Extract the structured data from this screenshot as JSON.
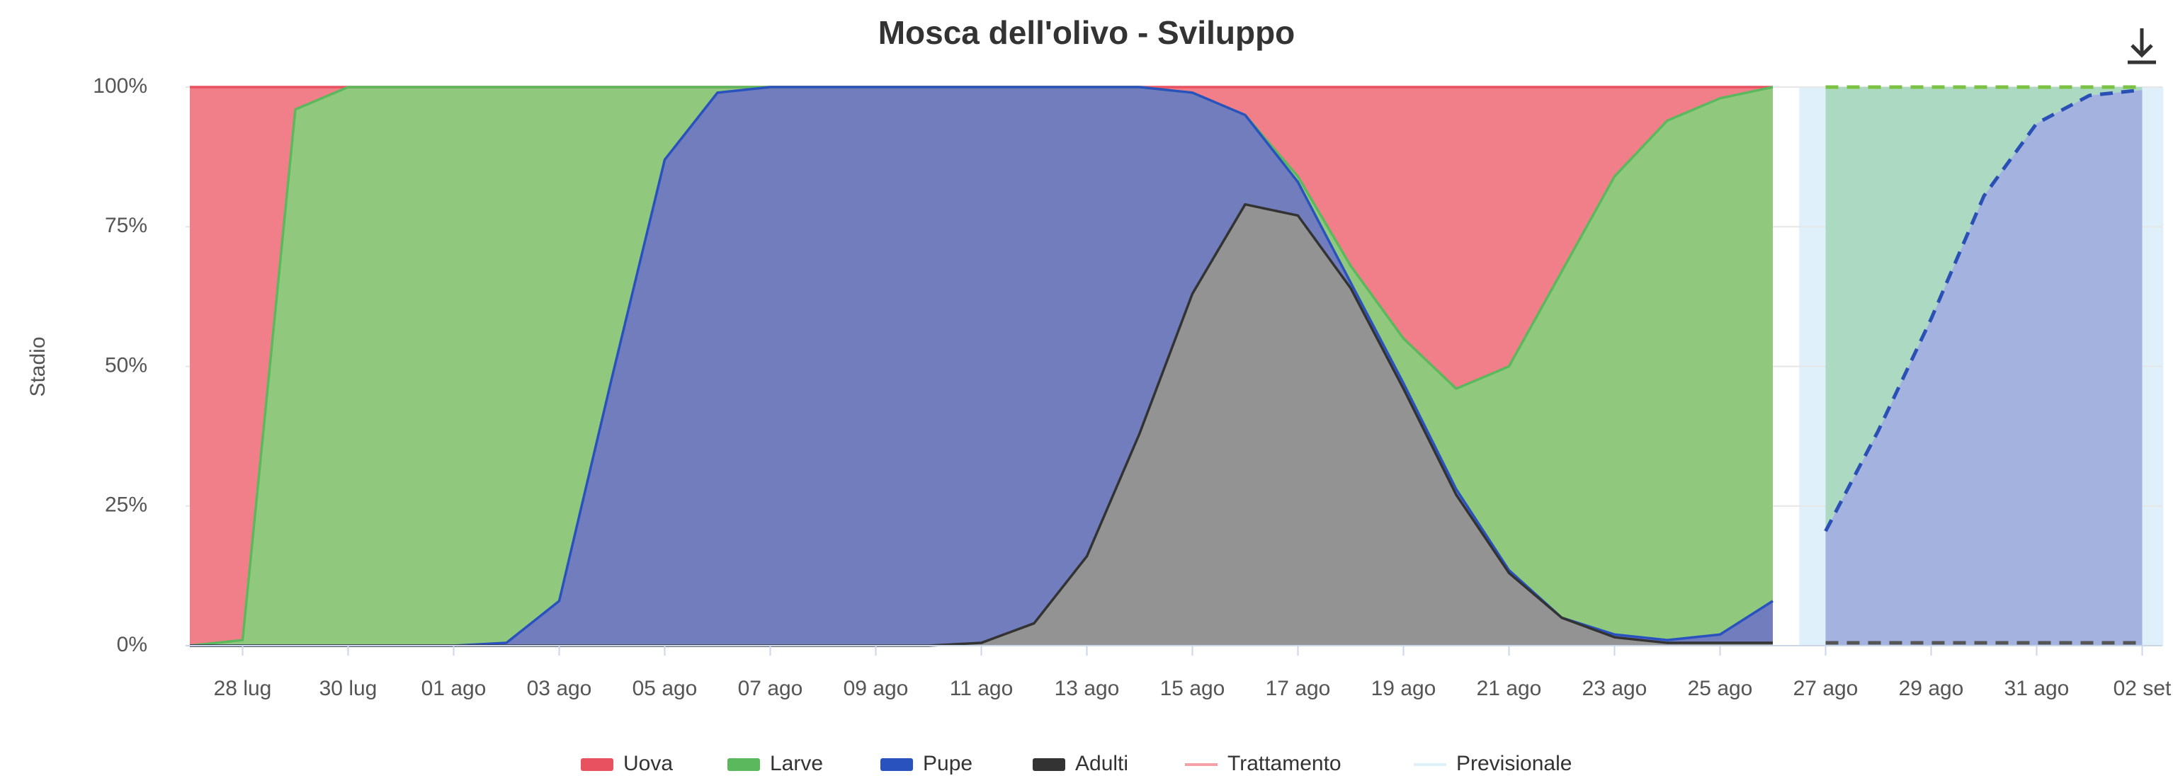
{
  "chart_data": {
    "type": "stacked_area",
    "title": "Mosca dell'olivo - Sviluppo",
    "y_label": "Stadio",
    "categories": [
      null,
      "28 lug",
      null,
      "30 lug",
      null,
      "01 ago",
      null,
      "03 ago",
      null,
      "05 ago",
      null,
      "07 ago",
      null,
      "09 ago",
      null,
      "11 ago",
      null,
      "13 ago",
      null,
      "15 ago",
      null,
      "17 ago",
      null,
      "19 ago",
      null,
      "21 ago",
      null,
      "23 ago",
      null,
      "25 ago",
      null,
      "27 ago",
      null,
      "29 ago",
      null,
      "31 ago",
      null,
      "02 set"
    ],
    "series": [
      {
        "name": "Uova",
        "color": "#f07f89",
        "line": "#e8515f",
        "values": [
          100,
          99,
          4,
          0,
          0,
          0,
          0,
          0,
          0,
          0,
          0,
          0,
          0,
          0,
          0,
          0,
          0,
          0,
          0,
          1,
          5,
          16,
          32,
          45,
          54,
          50,
          33,
          16,
          6,
          2,
          0,
          null,
          null,
          null,
          null,
          null,
          null,
          null
        ]
      },
      {
        "name": "Larve",
        "color": "#90c97e",
        "line": "#5cb85c",
        "values": [
          0,
          1,
          96,
          100,
          100,
          100,
          99.5,
          92,
          52,
          13,
          1,
          0,
          0,
          0,
          0,
          0,
          0,
          0,
          0,
          0,
          0,
          1,
          3,
          8,
          18,
          36.5,
          62,
          82,
          93,
          96,
          92,
          null,
          null,
          null,
          null,
          null,
          null,
          null
        ]
      },
      {
        "name": "Pupe",
        "color": "#717dbd",
        "line": "#2a52be",
        "values": [
          0,
          0,
          0,
          0,
          0,
          0,
          0.5,
          8,
          48,
          87,
          99,
          100,
          100,
          100,
          100,
          99.5,
          96,
          84,
          62,
          36,
          16,
          6,
          1,
          1,
          1,
          0.5,
          0,
          0.5,
          0.5,
          1.5,
          7.5,
          null,
          null,
          null,
          null,
          null,
          null,
          null
        ]
      },
      {
        "name": "Adulti",
        "color": "#939393",
        "line": "#333333",
        "values": [
          0,
          0,
          0,
          0,
          0,
          0,
          0,
          0,
          0,
          0,
          0,
          0,
          0,
          0,
          0,
          0.5,
          4,
          16,
          38,
          63,
          79,
          77,
          64,
          46,
          27,
          13,
          5,
          1.5,
          0.5,
          0.5,
          0.5,
          null,
          null,
          null,
          null,
          null,
          null,
          null
        ]
      }
    ],
    "forecast_series": [
      {
        "color": "#acd9c2",
        "line": "#7bc143",
        "values": [
          null,
          null,
          null,
          null,
          null,
          null,
          null,
          null,
          null,
          null,
          null,
          null,
          null,
          null,
          null,
          null,
          null,
          null,
          null,
          null,
          null,
          null,
          null,
          null,
          null,
          null,
          null,
          null,
          null,
          null,
          null,
          79.5,
          61.5,
          41.5,
          19.5,
          6.5,
          1.5,
          0.5
        ]
      },
      {
        "color": "#a3b2de",
        "line": "#2a4fb5",
        "values": [
          null,
          null,
          null,
          null,
          null,
          null,
          null,
          null,
          null,
          null,
          null,
          null,
          null,
          null,
          null,
          null,
          null,
          null,
          null,
          null,
          null,
          null,
          null,
          null,
          null,
          null,
          null,
          null,
          null,
          null,
          null,
          20,
          38,
          58,
          80,
          93,
          98,
          99
        ]
      },
      {
        "color": "#a3b2de",
        "line": "#555555",
        "values": [
          null,
          null,
          null,
          null,
          null,
          null,
          null,
          null,
          null,
          null,
          null,
          null,
          null,
          null,
          null,
          null,
          null,
          null,
          null,
          null,
          null,
          null,
          null,
          null,
          null,
          null,
          null,
          null,
          null,
          null,
          null,
          0.5,
          0.5,
          0.5,
          0.5,
          0.5,
          0.5,
          0.5
        ]
      }
    ],
    "plot_band": {
      "name": "Previsionale",
      "color": "#dff0fb",
      "from": 30.5,
      "to": 37.4
    },
    "legend_extra": [
      {
        "name": "Trattamento",
        "color": "#f4a0a8"
      }
    ],
    "ylim": [
      0,
      100
    ],
    "yticks": [
      {
        "value": 0,
        "label": "0%"
      },
      {
        "value": 25,
        "label": "25%"
      },
      {
        "value": 50,
        "label": "50%"
      },
      {
        "value": 75,
        "label": "75%"
      },
      {
        "value": 100,
        "label": "100%"
      }
    ],
    "grid": true
  }
}
